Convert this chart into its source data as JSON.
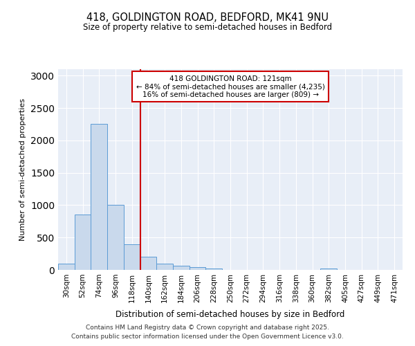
{
  "title1": "418, GOLDINGTON ROAD, BEDFORD, MK41 9NU",
  "title2": "Size of property relative to semi-detached houses in Bedford",
  "xlabel": "Distribution of semi-detached houses by size in Bedford",
  "ylabel": "Number of semi-detached properties",
  "categories": [
    "30sqm",
    "52sqm",
    "74sqm",
    "96sqm",
    "118sqm",
    "140sqm",
    "162sqm",
    "184sqm",
    "206sqm",
    "228sqm",
    "250sqm",
    "272sqm",
    "294sqm",
    "316sqm",
    "338sqm",
    "360sqm",
    "382sqm",
    "405sqm",
    "427sqm",
    "449sqm",
    "471sqm"
  ],
  "values": [
    100,
    850,
    2260,
    1010,
    400,
    200,
    100,
    60,
    40,
    20,
    5,
    0,
    0,
    0,
    0,
    0,
    20,
    0,
    0,
    0,
    0
  ],
  "bar_color": "#c9d9ec",
  "bar_edge_color": "#5b9bd5",
  "red_line_x": 4.5,
  "annotation_title": "418 GOLDINGTON ROAD: 121sqm",
  "annotation_line1": "← 84% of semi-detached houses are smaller (4,235)",
  "annotation_line2": "16% of semi-detached houses are larger (809) →",
  "annotation_box_color": "#ffffff",
  "annotation_box_edge": "#cc0000",
  "red_line_color": "#cc0000",
  "footer1": "Contains HM Land Registry data © Crown copyright and database right 2025.",
  "footer2": "Contains public sector information licensed under the Open Government Licence v3.0.",
  "ylim": [
    0,
    3100
  ],
  "yticks": [
    0,
    500,
    1000,
    1500,
    2000,
    2500,
    3000
  ],
  "background_color": "#ffffff",
  "plot_bg_color": "#e8eef7",
  "grid_color": "#ffffff"
}
